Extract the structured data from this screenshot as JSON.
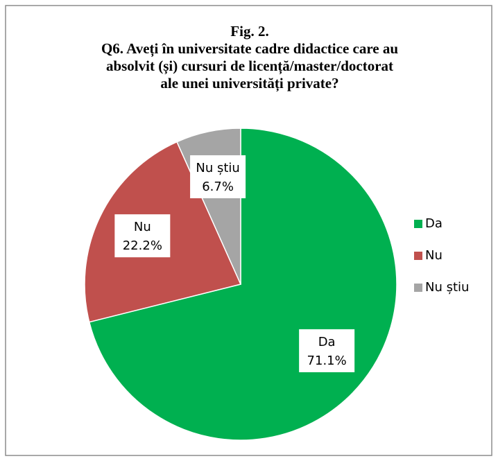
{
  "chart_data": {
    "type": "pie",
    "title": [
      "Fig. 2.",
      "Q6. Aveți în universitate cadre didactice care au",
      "absolvit (și) cursuri de licență/master/doctorat",
      "ale unei universități private?"
    ],
    "categories": [
      "Da",
      "Nu",
      "Nu știu"
    ],
    "values": [
      71.1,
      22.2,
      6.7
    ],
    "value_labels": [
      "71.1%",
      "22.2%",
      "6.7%"
    ],
    "colors": [
      "#00b050",
      "#c0504d",
      "#a5a5a5"
    ],
    "legend": "right"
  }
}
